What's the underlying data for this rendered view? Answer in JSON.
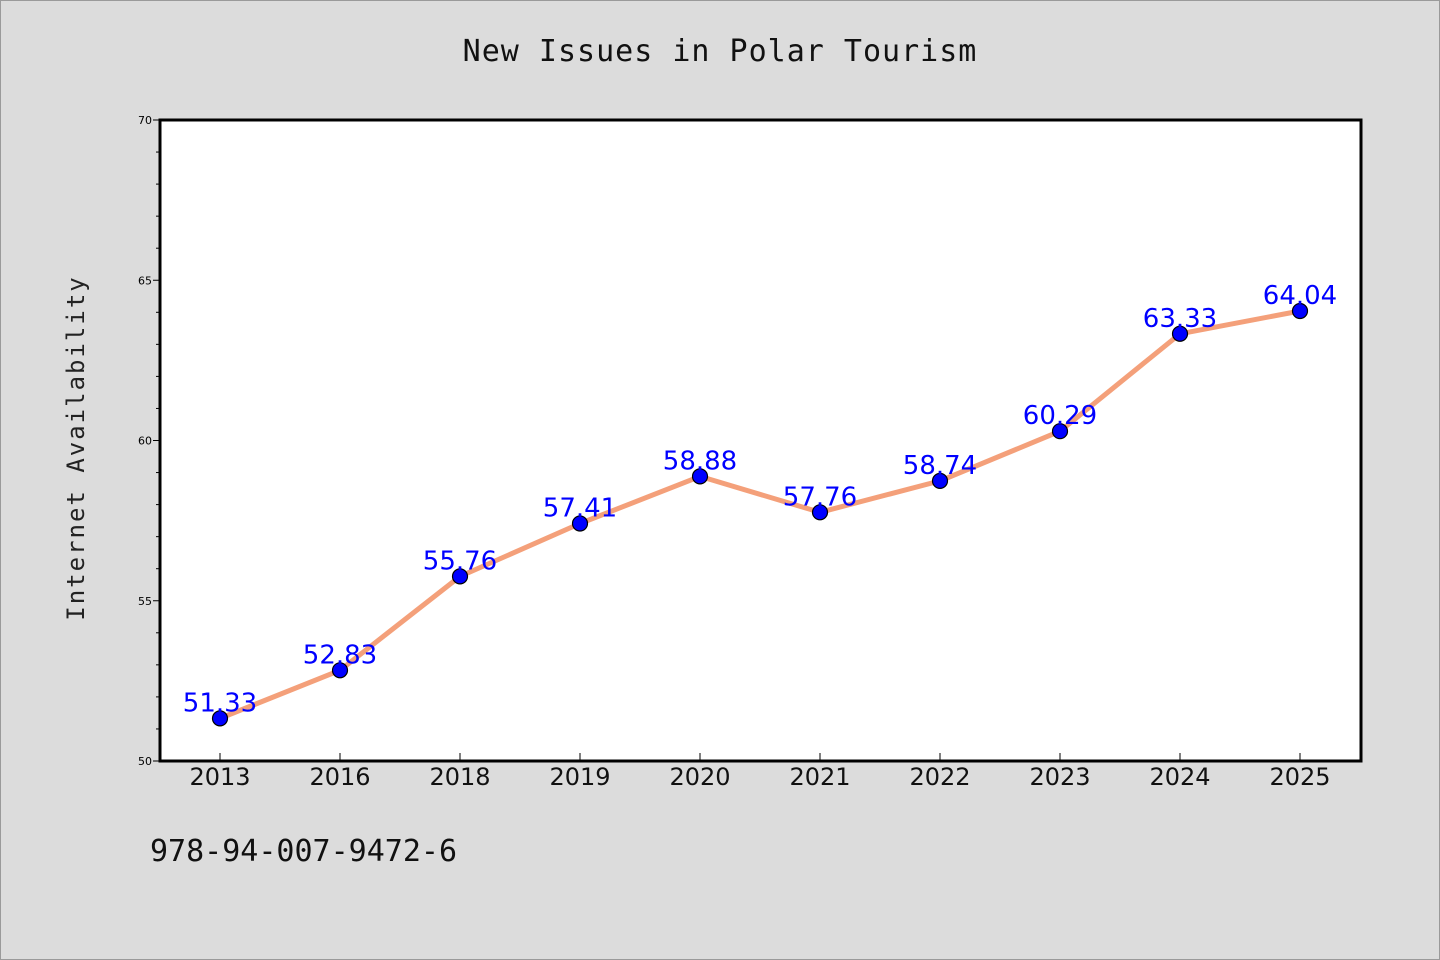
{
  "chart_data": {
    "type": "line",
    "title": "New Issues in Polar Tourism",
    "ylabel": "Internet Availability",
    "xlabel": "",
    "categories": [
      "2013",
      "2016",
      "2018",
      "2019",
      "2020",
      "2021",
      "2022",
      "2023",
      "2024",
      "2025"
    ],
    "series": [
      {
        "values": [
          51.33,
          52.83,
          55.76,
          57.41,
          58.88,
          57.76,
          58.74,
          60.29,
          63.33,
          64.04
        ],
        "data_labels": [
          "51.33",
          "52.83",
          "55.76",
          "57.41",
          "58.88",
          "57.76",
          "58.74",
          "60.29",
          "63.33",
          "64.04"
        ]
      }
    ],
    "ylim": [
      50,
      70
    ],
    "yticks": [
      "50",
      "55",
      "60",
      "65",
      "70"
    ],
    "grid": false,
    "legend": "none",
    "colors": {
      "line": "#f4a07a",
      "marker": "#0000ff",
      "data_label": "#0000ff",
      "background": "#dcdcdc",
      "plot_area": "#ffffff"
    }
  },
  "footer": {
    "isbn": "978-94-007-9472-6"
  }
}
